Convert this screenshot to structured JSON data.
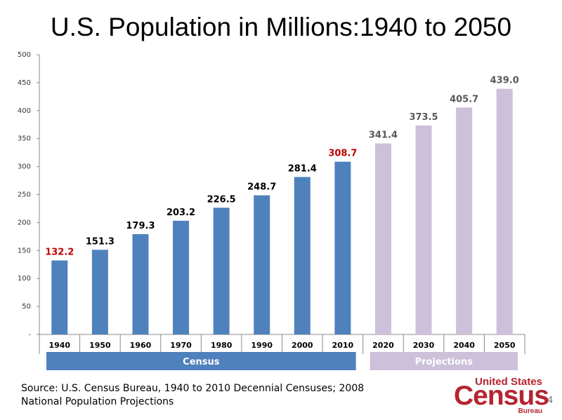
{
  "slide": {
    "title": "U.S. Population in Millions:1940 to 2050",
    "source": "Source: U.S. Census Bureau, 1940 to 2010 Decennial Censuses; 2008 National Population Projections",
    "page_number": "4",
    "logo": {
      "top": "United States",
      "main": "Census",
      "sub": "Bureau"
    }
  },
  "colors": {
    "census_bar": "#4f81bd",
    "projection_bar": "#ccc0da",
    "label_dark": "#000000",
    "label_red": "#c00000",
    "label_gray": "#595959",
    "logo_red": "#b5242f"
  },
  "chart_data": {
    "type": "bar",
    "title": "U.S. Population in Millions:1940 to 2050",
    "categories": [
      "1940",
      "1950",
      "1960",
      "1970",
      "1980",
      "1990",
      "2000",
      "2010",
      "2020",
      "2030",
      "2040",
      "2050"
    ],
    "values": [
      132.2,
      151.3,
      179.3,
      203.2,
      226.5,
      248.7,
      281.4,
      308.7,
      341.4,
      373.5,
      405.7,
      439.0
    ],
    "value_labels": [
      "132.2",
      "151.3",
      "179.3",
      "203.2",
      "226.5",
      "248.7",
      "281.4",
      "308.7",
      "341.4",
      "373.5",
      "405.7",
      "439.0"
    ],
    "series_kind": [
      "census",
      "census",
      "census",
      "census",
      "census",
      "census",
      "census",
      "census",
      "projection",
      "projection",
      "projection",
      "projection"
    ],
    "highlighted_labels": [
      "1940",
      "2010"
    ],
    "ylim": [
      0,
      500
    ],
    "yticks": [
      0,
      50,
      100,
      150,
      200,
      250,
      300,
      350,
      400,
      450,
      500
    ],
    "ytick_labels": [
      "-",
      "50",
      "100",
      "150",
      "200",
      "250",
      "300",
      "350",
      "400",
      "450",
      "500"
    ],
    "grid": false,
    "groups": [
      {
        "label": "Census",
        "from": "1940",
        "to": "2010"
      },
      {
        "label": "Projections",
        "from": "2020",
        "to": "2050"
      }
    ]
  }
}
